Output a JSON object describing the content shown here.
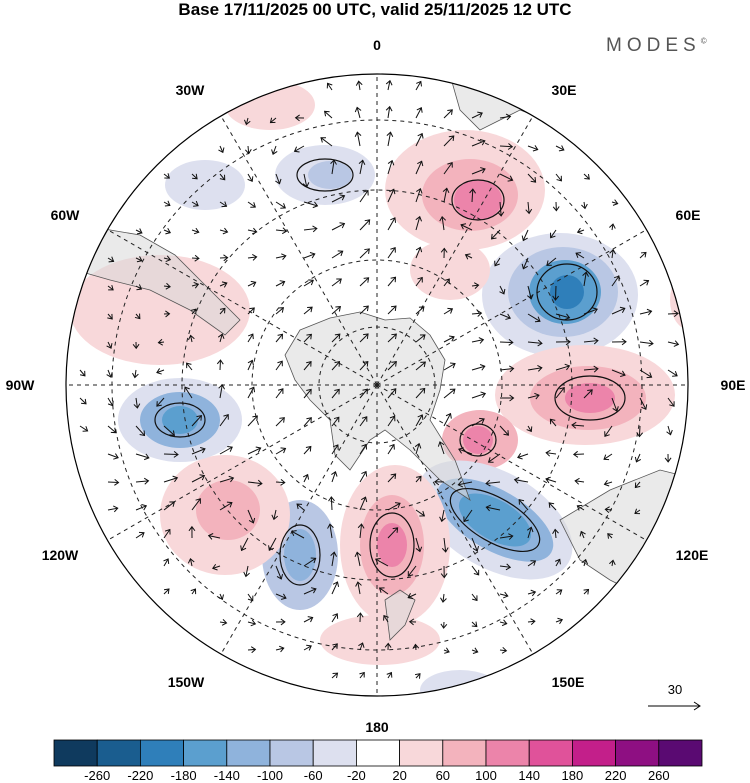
{
  "title": "Base 17/11/2025 00 UTC, valid 25/11/2025 12 UTC",
  "brand": "MODES",
  "brand_mark": "©",
  "longitude_labels": {
    "lon_0": "0",
    "lon_30e": "30E",
    "lon_60e": "60E",
    "lon_90e": "90E",
    "lon_120e": "120E",
    "lon_150e": "150E",
    "lon_180": "180",
    "lon_150w": "150W",
    "lon_120w": "120W",
    "lon_90w": "90W",
    "lon_60w": "60W",
    "lon_30w": "30W"
  },
  "reference_vector": {
    "value": "30"
  },
  "colorbar": {
    "colors": [
      "#0f3a5e",
      "#1a5d8f",
      "#2f7fba",
      "#5b9fcf",
      "#8fb3dc",
      "#b9c7e4",
      "#dde0ef",
      "#ffffff",
      "#f8d8da",
      "#f3b3bd",
      "#ec84aa",
      "#e0529a",
      "#c31f8a",
      "#8e0f82",
      "#5a0a72"
    ],
    "ticks": [
      "-260",
      "-220",
      "-180",
      "-140",
      "-100",
      "-60",
      "-20",
      "20",
      "60",
      "100",
      "140",
      "180",
      "220",
      "260"
    ]
  },
  "anomalies": [
    {
      "sign": "pos",
      "level": 3,
      "label": "high near 30E"
    },
    {
      "sign": "neg",
      "level": 4,
      "label": "low near 60E"
    },
    {
      "sign": "pos",
      "level": 3,
      "label": "high near 90E"
    },
    {
      "sign": "pos",
      "level": 3,
      "label": "high near 100E"
    },
    {
      "sign": "neg",
      "level": 4,
      "label": "low near 130E"
    },
    {
      "sign": "pos",
      "level": 4,
      "label": "high near 170E"
    },
    {
      "sign": "neg",
      "level": 2,
      "label": "low near 150W"
    },
    {
      "sign": "pos",
      "level": 2,
      "label": "high near 120W"
    },
    {
      "sign": "neg",
      "level": 3,
      "label": "low near 90W"
    },
    {
      "sign": "pos",
      "level": 1,
      "label": "high near 60W"
    },
    {
      "sign": "neg",
      "level": 2,
      "label": "low near 20W"
    },
    {
      "sign": "neg",
      "level": 1,
      "label": "low near 40W"
    }
  ]
}
